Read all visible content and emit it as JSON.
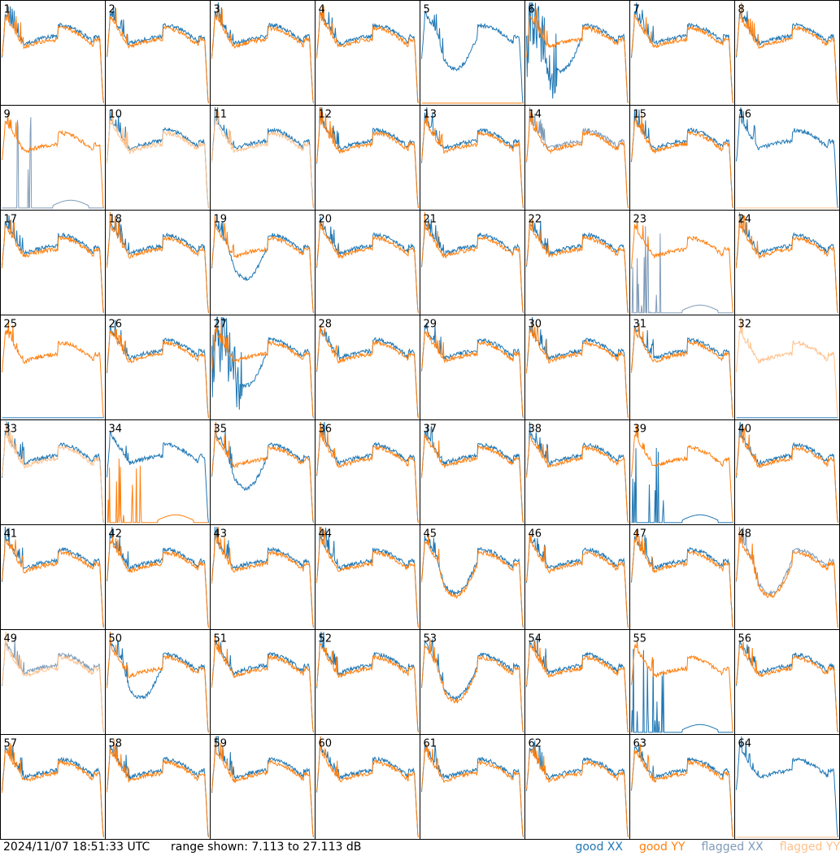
{
  "footer": {
    "timestamp": "2024/11/07 18:51:33 UTC",
    "range_text": "range shown: 7.113 to 27.113 dB"
  },
  "legend": [
    {
      "label": "good XX",
      "color": "#1f77b4"
    },
    {
      "label": "good YY",
      "color": "#ff7f0e"
    },
    {
      "label": "flagged XX",
      "color": "#7f9bb8"
    },
    {
      "label": "flagged YY",
      "color": "#ffc08a"
    }
  ],
  "chart_data": {
    "type": "line",
    "grid_layout": {
      "rows": 8,
      "cols": 8
    },
    "ylim_db": [
      7.113,
      27.113
    ],
    "panel_labels": [
      "1",
      "2",
      "3",
      "4",
      "5",
      "6",
      "7",
      "8",
      "9",
      "10",
      "11",
      "12",
      "13",
      "14",
      "15",
      "16",
      "17",
      "18",
      "19",
      "20",
      "21",
      "22",
      "23",
      "24",
      "25",
      "26",
      "27",
      "28",
      "29",
      "30",
      "31",
      "32",
      "33",
      "34",
      "35",
      "36",
      "37",
      "38",
      "39",
      "40",
      "41",
      "42",
      "43",
      "44",
      "45",
      "46",
      "47",
      "48",
      "49",
      "50",
      "51",
      "52",
      "53",
      "54",
      "55",
      "56",
      "57",
      "58",
      "59",
      "60",
      "61",
      "62",
      "63",
      "64"
    ],
    "panel_styles": {
      "normal": {
        "xx": "good",
        "yy": "good",
        "xx_shape": "standard",
        "yy_shape": "standard"
      },
      "5": {
        "xx": "good",
        "yy": "good",
        "xx_shape": "dip",
        "yy_shape": "dead"
      },
      "6": {
        "xx": "good",
        "yy": "good",
        "xx_shape": "noisy_dip",
        "yy_shape": "standard"
      },
      "9": {
        "xx": "flagged",
        "yy": "good",
        "xx_shape": "dead_spikes",
        "yy_shape": "standard"
      },
      "10": {
        "xx": "good",
        "yy": "flagged",
        "xx_shape": "standard",
        "yy_shape": "standard"
      },
      "11": {
        "xx": "good",
        "yy": "flagged",
        "xx_shape": "standard",
        "yy_shape": "standard"
      },
      "14": {
        "xx": "flagged",
        "yy": "good",
        "xx_shape": "standard",
        "yy_shape": "standard"
      },
      "16": {
        "xx": "good",
        "yy": "flagged",
        "xx_shape": "standard",
        "yy_shape": "dead"
      },
      "19": {
        "xx": "good",
        "yy": "good",
        "xx_shape": "dip",
        "yy_shape": "standard"
      },
      "23": {
        "xx": "flagged",
        "yy": "good",
        "xx_shape": "dead_spikes",
        "yy_shape": "standard"
      },
      "25": {
        "xx": "good",
        "yy": "good",
        "xx_shape": "dead",
        "yy_shape": "standard"
      },
      "27": {
        "xx": "good",
        "yy": "good",
        "xx_shape": "noisy_dip",
        "yy_shape": "standard"
      },
      "32": {
        "xx": "good",
        "yy": "flagged",
        "xx_shape": "dead",
        "yy_shape": "standard"
      },
      "33": {
        "xx": "good",
        "yy": "flagged",
        "xx_shape": "standard",
        "yy_shape": "standard"
      },
      "34": {
        "xx": "good",
        "yy": "good",
        "xx_shape": "standard",
        "yy_shape": "dead_spikes"
      },
      "35": {
        "xx": "good",
        "yy": "good",
        "xx_shape": "dip",
        "yy_shape": "standard"
      },
      "39": {
        "xx": "good",
        "yy": "good",
        "xx_shape": "dead_spikes",
        "yy_shape": "standard"
      },
      "45": {
        "xx": "good",
        "yy": "good",
        "xx_shape": "dip",
        "yy_shape": "dip"
      },
      "48": {
        "xx": "flagged",
        "yy": "good",
        "xx_shape": "dip",
        "yy_shape": "dip"
      },
      "49": {
        "xx": "flagged",
        "yy": "flagged",
        "xx_shape": "standard",
        "yy_shape": "standard"
      },
      "50": {
        "xx": "good",
        "yy": "good",
        "xx_shape": "dip",
        "yy_shape": "standard"
      },
      "53": {
        "xx": "good",
        "yy": "good",
        "xx_shape": "dip",
        "yy_shape": "dip"
      },
      "55": {
        "xx": "good",
        "yy": "good",
        "xx_shape": "dead_spikes",
        "yy_shape": "standard"
      },
      "64": {
        "xx": "good",
        "yy": "flagged",
        "xx_shape": "standard",
        "yy_shape": "dead"
      }
    }
  }
}
